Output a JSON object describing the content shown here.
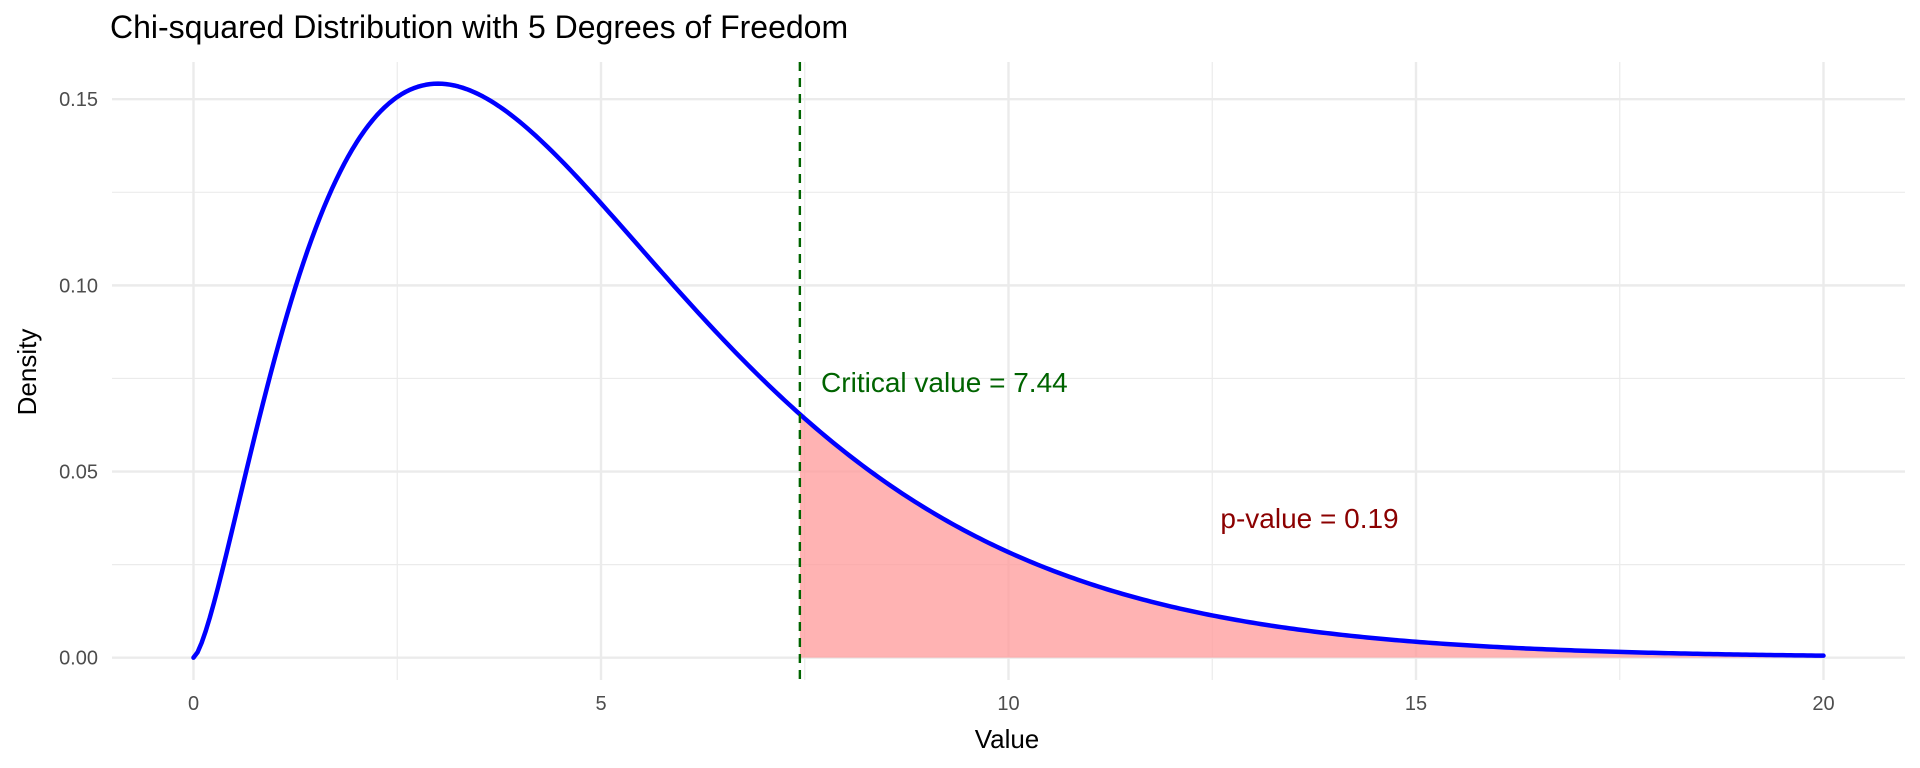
{
  "chart_data": {
    "type": "area",
    "title": "Chi-squared Distribution with 5 Degrees of Freedom",
    "xlabel": "Value",
    "ylabel": "Density",
    "xlim": [
      -1,
      21
    ],
    "ylim": [
      -0.006,
      0.16
    ],
    "x_ticks": [
      0,
      5,
      10,
      15,
      20
    ],
    "x_tick_labels": [
      "0",
      "5",
      "10",
      "15",
      "20"
    ],
    "y_ticks": [
      0.0,
      0.05,
      0.1,
      0.15
    ],
    "y_tick_labels": [
      "0.00",
      "0.05",
      "0.10",
      "0.15"
    ],
    "grid": true,
    "distribution": "chi-squared",
    "degrees_of_freedom": 5,
    "curve_x_range": [
      0,
      20
    ],
    "series": [
      {
        "x": [
          0,
          0.5,
          1,
          1.5,
          2,
          2.5,
          3,
          3.5,
          4,
          4.5,
          5,
          5.5,
          6,
          6.5,
          7,
          7.44,
          8,
          8.5,
          9,
          9.5,
          10,
          11,
          12,
          13,
          14,
          15,
          16,
          17,
          18,
          19,
          20
        ],
        "values": [
          0,
          0.0366,
          0.0807,
          0.1153,
          0.1384,
          0.1508,
          0.1542,
          0.1504,
          0.1465,
          0.1386,
          0.122,
          0.1117,
          0.0974,
          0.0839,
          0.0717,
          0.0653,
          0.0515,
          0.0427,
          0.0364,
          0.0316,
          0.0283,
          0.0188,
          0.0133,
          0.009,
          0.0062,
          0.0042,
          0.0028,
          0.0019,
          0.0012,
          0.0008,
          0.0005
        ]
      }
    ],
    "critical_value": 7.44,
    "shaded_region": [
      7.44,
      20
    ],
    "annotations": [
      {
        "text": "Critical value = 7.44",
        "x": 7.7,
        "y": 0.074,
        "color": "#006400"
      },
      {
        "text": "p-value = 0.19",
        "x": 12.6,
        "y": 0.0375,
        "color": "#8b0000"
      }
    ],
    "colors": {
      "curve": "#0000ff",
      "shade": "#ff9999",
      "critical_line": "#006400",
      "grid": "#ebebeb",
      "tick_text": "#4d4d4d"
    }
  }
}
